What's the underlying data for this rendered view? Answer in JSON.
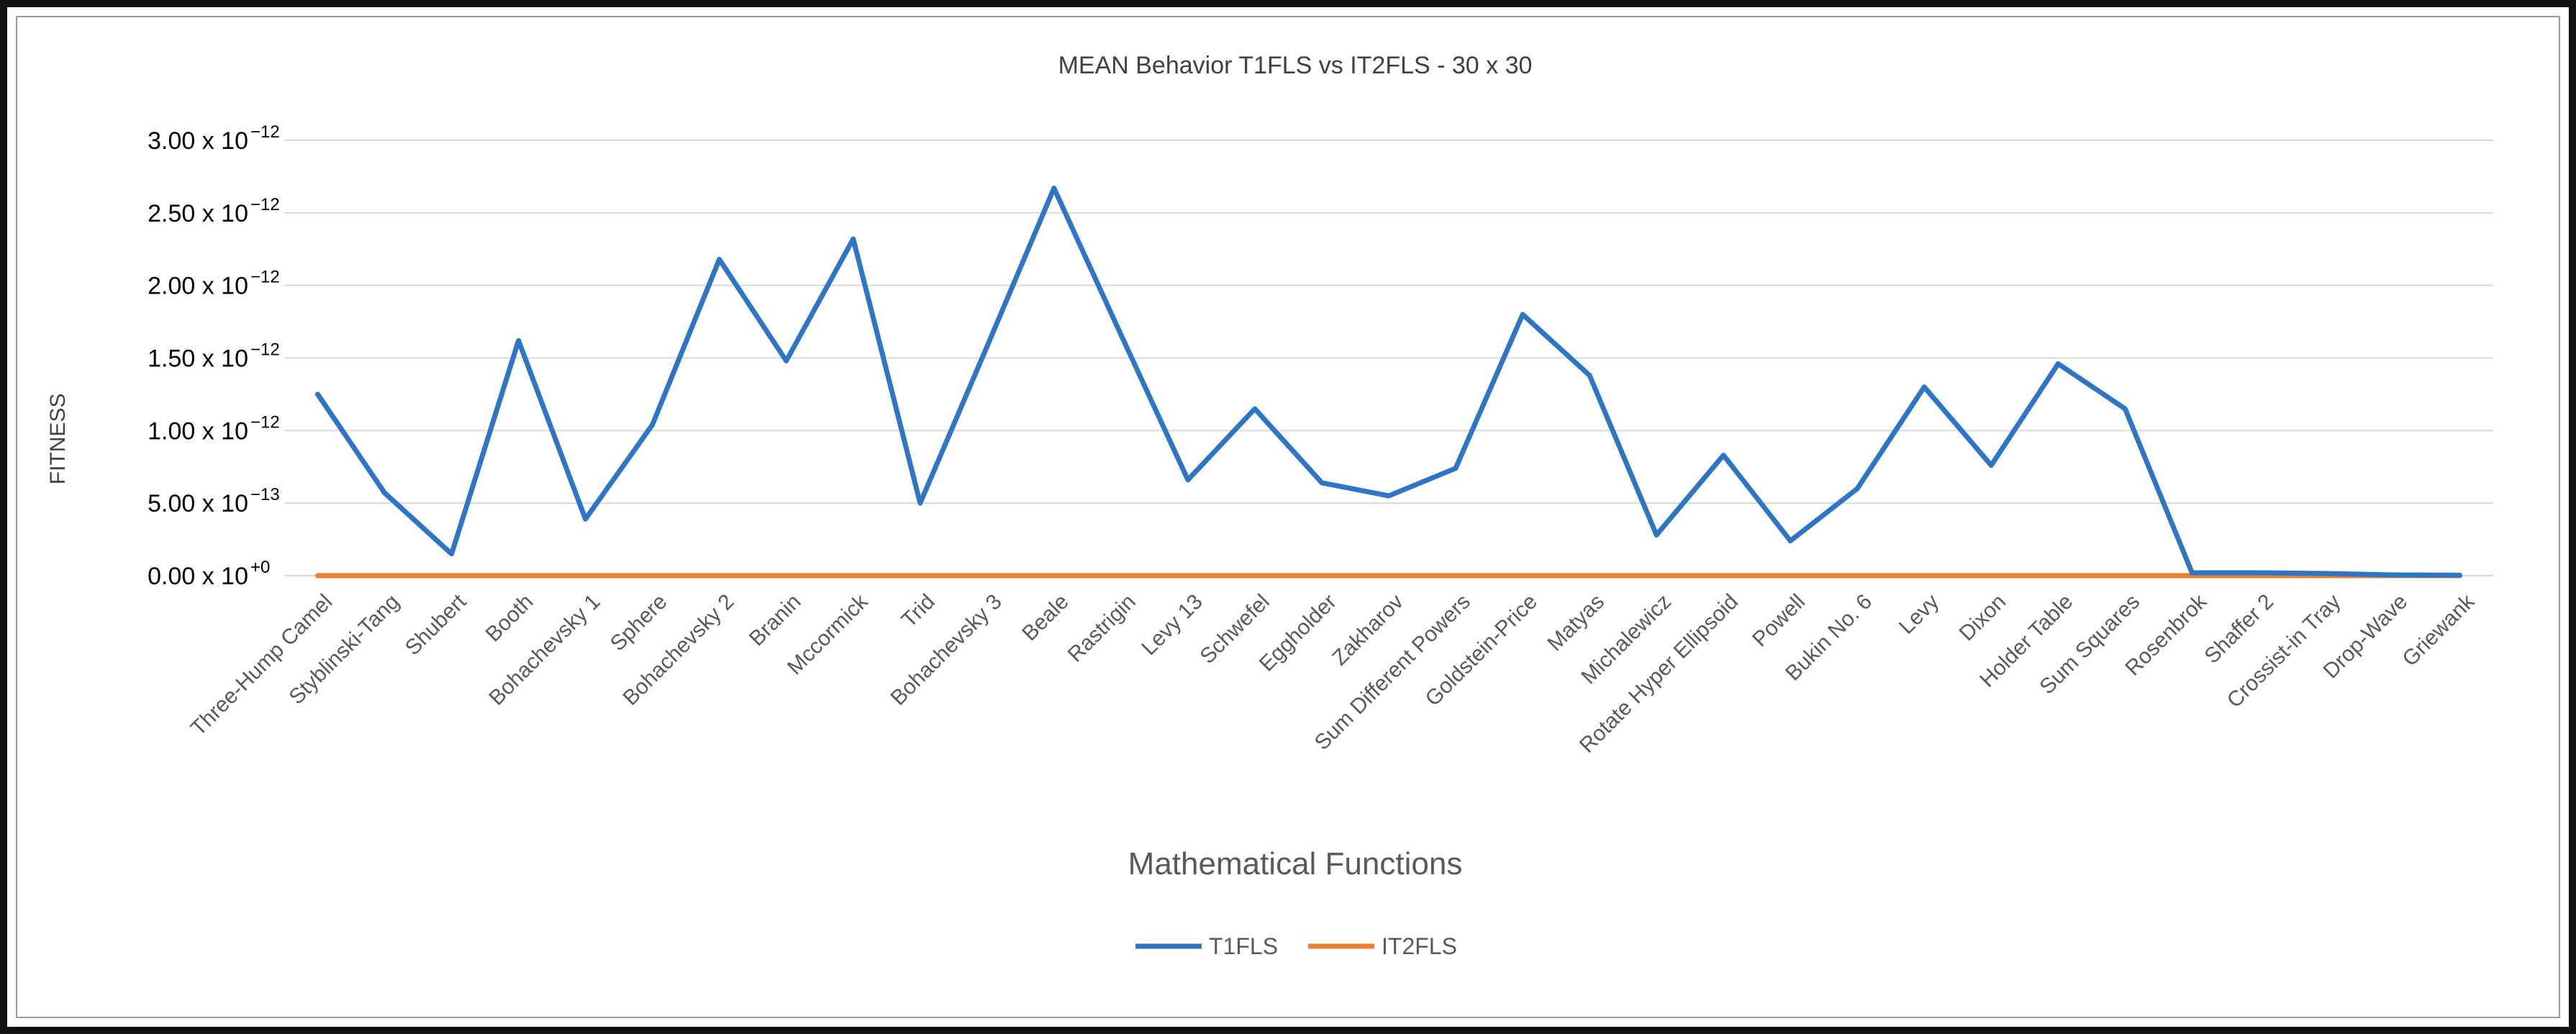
{
  "chart_data": {
    "type": "line",
    "title": "MEAN Behavior T1FLS vs IT2FLS - 30 x 30",
    "xlabel": "Mathematical Functions",
    "ylabel": "FITNESS",
    "ylim": [
      0,
      3e-12
    ],
    "yticks": [
      {
        "value": 0,
        "mantissa": "0.00 x 10",
        "exponent": "+0"
      },
      {
        "value": 5e-13,
        "mantissa": "5.00 x 10",
        "exponent": "−13"
      },
      {
        "value": 1e-12,
        "mantissa": "1.00 x 10",
        "exponent": "−12"
      },
      {
        "value": 1.5e-12,
        "mantissa": "1.50 x 10",
        "exponent": "−12"
      },
      {
        "value": 2e-12,
        "mantissa": "2.00 x 10",
        "exponent": "−12"
      },
      {
        "value": 2.5e-12,
        "mantissa": "2.50 x 10",
        "exponent": "−12"
      },
      {
        "value": 3e-12,
        "mantissa": "3.00 x 10",
        "exponent": "−12"
      }
    ],
    "categories": [
      "Three-Hump Camel",
      "Styblinski-Tang",
      "Shubert",
      "Booth",
      "Bohachevsky 1",
      "Sphere",
      "Bohachevsky 2",
      "Branin",
      "Mccormick",
      "Trid",
      "Bohachevsky 3",
      "Beale",
      "Rastrigin",
      "Levy 13",
      "Schwefel",
      "Eggholder",
      "Zakharov",
      "Sum Different Powers",
      "Goldstein-Price",
      "Matyas",
      "Michalewicz",
      "Rotate Hyper Ellipsoid",
      "Powell",
      "Bukin No. 6",
      "Levy",
      "Dixon",
      "Holder Table",
      "Sum Squares",
      "Rosenbrok",
      "Shaffer 2",
      "Crossist-in Tray",
      "Drop-Wave",
      "Griewank"
    ],
    "series": [
      {
        "name": "T1FLS",
        "color": "#2E75C6",
        "values": [
          1.25e-12,
          5.7e-13,
          1.5e-13,
          1.62e-12,
          3.9e-13,
          1.04e-12,
          2.18e-12,
          1.48e-12,
          2.32e-12,
          5e-13,
          1.58e-12,
          2.67e-12,
          1.66e-12,
          6.6e-13,
          1.15e-12,
          6.4e-13,
          5.5e-13,
          7.4e-13,
          1.8e-12,
          1.38e-12,
          2.8e-13,
          8.3e-13,
          2.4e-13,
          6e-13,
          1.3e-12,
          7.6e-13,
          1.46e-12,
          1.15e-12,
          2e-14,
          2e-14,
          1.5e-14,
          5e-15,
          3e-15
        ]
      },
      {
        "name": "IT2FLS",
        "color": "#ED7D31",
        "values": [
          0,
          0,
          0,
          0,
          0,
          0,
          0,
          0,
          0,
          0,
          0,
          0,
          0,
          0,
          0,
          0,
          0,
          0,
          0,
          0,
          0,
          0,
          0,
          0,
          0,
          0,
          0,
          0,
          0,
          0,
          0,
          0,
          0
        ]
      }
    ],
    "legend_position": "bottom"
  }
}
